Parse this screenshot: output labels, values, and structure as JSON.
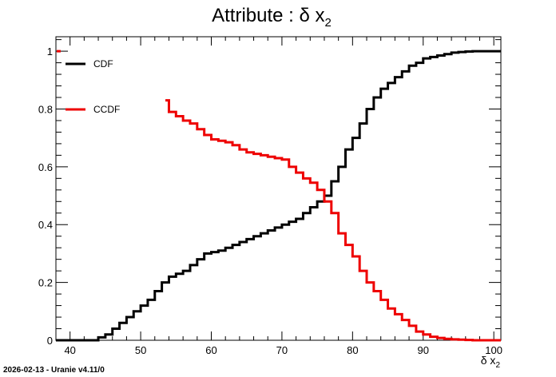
{
  "title": {
    "main": "Attribute :  δ x",
    "sub": "2"
  },
  "footer": "2026-02-13 - Uranie v4.11/0",
  "colors": {
    "cdf": "#000000",
    "ccdf": "#ee0000",
    "frame": "#000000",
    "background": "#ffffff"
  },
  "chart_data": {
    "type": "line",
    "title": "Attribute : δ x2",
    "xlabel": "δ x2",
    "ylabel": "",
    "xlim": [
      38,
      101
    ],
    "ylim": [
      0,
      1.05
    ],
    "grid": false,
    "legend_position": "top-left",
    "x_ticks": [
      40,
      50,
      60,
      70,
      80,
      90,
      100
    ],
    "x_tick_labels": [
      "40",
      "50",
      "60",
      "70",
      "80",
      "90",
      "100"
    ],
    "y_ticks": [
      0,
      0.2,
      0.4,
      0.6,
      0.8,
      1
    ],
    "y_tick_labels": [
      "0",
      "0.2",
      "0.4",
      "0.6",
      "0.8",
      "1"
    ],
    "series": [
      {
        "name": "CDF",
        "color": "#000000",
        "x": [
          38,
          42.5,
          44,
          45,
          46,
          47,
          48,
          49,
          50,
          51,
          52,
          53,
          54,
          55,
          56,
          57,
          58,
          59,
          60,
          61,
          62,
          63,
          64,
          65,
          66,
          67,
          68,
          69,
          70,
          71,
          72,
          73,
          74,
          75,
          76,
          77,
          78,
          79,
          80,
          81,
          82,
          83,
          84,
          85,
          86,
          87,
          88,
          89,
          90,
          91,
          92,
          93,
          94,
          95,
          96,
          97,
          98,
          99,
          100,
          101
        ],
        "y": [
          0,
          0,
          0.01,
          0.02,
          0.04,
          0.06,
          0.08,
          0.1,
          0.12,
          0.14,
          0.17,
          0.2,
          0.22,
          0.23,
          0.24,
          0.26,
          0.28,
          0.3,
          0.305,
          0.31,
          0.32,
          0.33,
          0.34,
          0.35,
          0.36,
          0.37,
          0.38,
          0.39,
          0.4,
          0.41,
          0.42,
          0.44,
          0.46,
          0.48,
          0.5,
          0.55,
          0.6,
          0.66,
          0.7,
          0.75,
          0.8,
          0.84,
          0.87,
          0.89,
          0.91,
          0.93,
          0.95,
          0.96,
          0.975,
          0.98,
          0.985,
          0.99,
          0.995,
          0.997,
          0.999,
          1,
          1,
          1,
          1,
          1
        ]
      },
      {
        "name": "CCDF",
        "color": "#ee0000",
        "x": [
          53.5,
          54,
          55,
          56,
          57,
          58,
          59,
          60,
          61,
          62,
          63,
          64,
          65,
          66,
          67,
          68,
          69,
          70,
          71,
          72,
          73,
          74,
          75,
          76,
          77,
          78,
          79,
          80,
          81,
          82,
          83,
          84,
          85,
          86,
          87,
          88,
          89,
          90,
          91,
          92,
          93,
          94,
          95,
          96,
          97,
          98,
          99,
          100,
          101
        ],
        "y": [
          0.83,
          0.79,
          0.775,
          0.76,
          0.75,
          0.73,
          0.71,
          0.695,
          0.69,
          0.685,
          0.675,
          0.66,
          0.65,
          0.645,
          0.64,
          0.635,
          0.63,
          0.625,
          0.6,
          0.58,
          0.56,
          0.545,
          0.52,
          0.48,
          0.44,
          0.37,
          0.33,
          0.29,
          0.24,
          0.2,
          0.17,
          0.14,
          0.11,
          0.09,
          0.07,
          0.05,
          0.03,
          0.02,
          0.012,
          0.008,
          0.005,
          0.003,
          0.002,
          0.001,
          0,
          0,
          0,
          0,
          0
        ]
      }
    ]
  }
}
